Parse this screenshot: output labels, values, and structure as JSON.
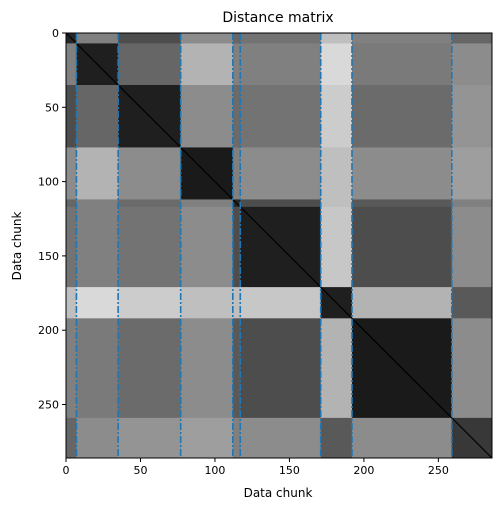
{
  "chart_data": {
    "type": "heatmap",
    "title": "Distance matrix",
    "xlabel": "Data chunk",
    "ylabel": "Data chunk",
    "n": 286,
    "colormap": "gray",
    "y_inverted": true,
    "x_ticks": [
      0,
      50,
      100,
      150,
      200,
      250
    ],
    "y_ticks": [
      0,
      50,
      100,
      150,
      200,
      250
    ],
    "x_tick_labels": [
      "0",
      "50",
      "100",
      "150",
      "200",
      "250"
    ],
    "y_tick_labels": [
      "0",
      "50",
      "100",
      "150",
      "200",
      "250"
    ],
    "xlim": [
      0,
      286
    ],
    "ylim": [
      286,
      0
    ],
    "segment_boundaries": [
      7,
      35,
      77,
      112,
      117,
      171,
      192,
      259
    ],
    "boundary_color": "#1f77b4",
    "segments": [
      {
        "start": 0,
        "end": 7
      },
      {
        "start": 7,
        "end": 35
      },
      {
        "start": 35,
        "end": 77
      },
      {
        "start": 77,
        "end": 112
      },
      {
        "start": 112,
        "end": 117
      },
      {
        "start": 117,
        "end": 171
      },
      {
        "start": 171,
        "end": 192
      },
      {
        "start": 192,
        "end": 259
      },
      {
        "start": 259,
        "end": 286
      }
    ],
    "block_brightness": [
      [
        0.15,
        0.5,
        0.3,
        0.55,
        0.4,
        0.45,
        0.75,
        0.5,
        0.4
      ],
      [
        0.5,
        0.12,
        0.4,
        0.7,
        0.5,
        0.5,
        0.85,
        0.48,
        0.55
      ],
      [
        0.3,
        0.4,
        0.12,
        0.55,
        0.42,
        0.45,
        0.8,
        0.42,
        0.58
      ],
      [
        0.55,
        0.7,
        0.55,
        0.1,
        0.5,
        0.55,
        0.75,
        0.55,
        0.62
      ],
      [
        0.4,
        0.5,
        0.42,
        0.5,
        0.15,
        0.3,
        0.75,
        0.35,
        0.5
      ],
      [
        0.45,
        0.5,
        0.45,
        0.55,
        0.3,
        0.12,
        0.78,
        0.3,
        0.55
      ],
      [
        0.75,
        0.85,
        0.8,
        0.75,
        0.75,
        0.78,
        0.12,
        0.7,
        0.35
      ],
      [
        0.5,
        0.48,
        0.42,
        0.55,
        0.35,
        0.3,
        0.7,
        0.1,
        0.55
      ],
      [
        0.4,
        0.55,
        0.58,
        0.62,
        0.5,
        0.55,
        0.35,
        0.55,
        0.22
      ]
    ]
  }
}
